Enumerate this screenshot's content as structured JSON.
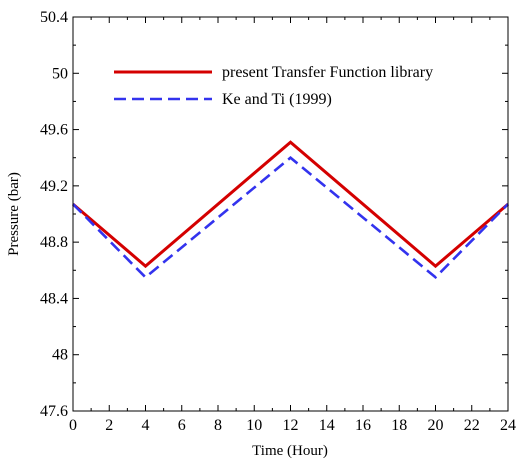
{
  "chart_data": {
    "type": "line",
    "xlabel": "Time (Hour)",
    "ylabel": "Pressure (bar)",
    "xlim": [
      0,
      24
    ],
    "ylim": [
      47.6,
      50.4
    ],
    "xticks": [
      0,
      2,
      4,
      6,
      8,
      10,
      12,
      14,
      16,
      18,
      20,
      22,
      24
    ],
    "xtick_labels": [
      "0",
      "2",
      "4",
      "6",
      "8",
      "10",
      "12",
      "14",
      "16",
      "18",
      "20",
      "22",
      "24"
    ],
    "yticks": [
      47.6,
      48,
      48.4,
      48.8,
      49.2,
      49.6,
      50,
      50.4
    ],
    "ytick_labels": [
      "47.6",
      "48",
      "48.4",
      "48.8",
      "49.2",
      "49.6",
      "50",
      "50.4"
    ],
    "grid": false,
    "legend_position": "top-right",
    "series": [
      {
        "name": "present Transfer Function library",
        "color": "#d40000",
        "style": "solid",
        "x": [
          0,
          4,
          12,
          20,
          24
        ],
        "y": [
          49.07,
          48.63,
          49.51,
          48.63,
          49.07
        ]
      },
      {
        "name": "Ke and Ti (1999)",
        "color": "#3333ee",
        "style": "dashed",
        "x": [
          0,
          4,
          12,
          20,
          24
        ],
        "y": [
          49.07,
          48.55,
          49.4,
          48.55,
          49.07
        ]
      }
    ]
  }
}
